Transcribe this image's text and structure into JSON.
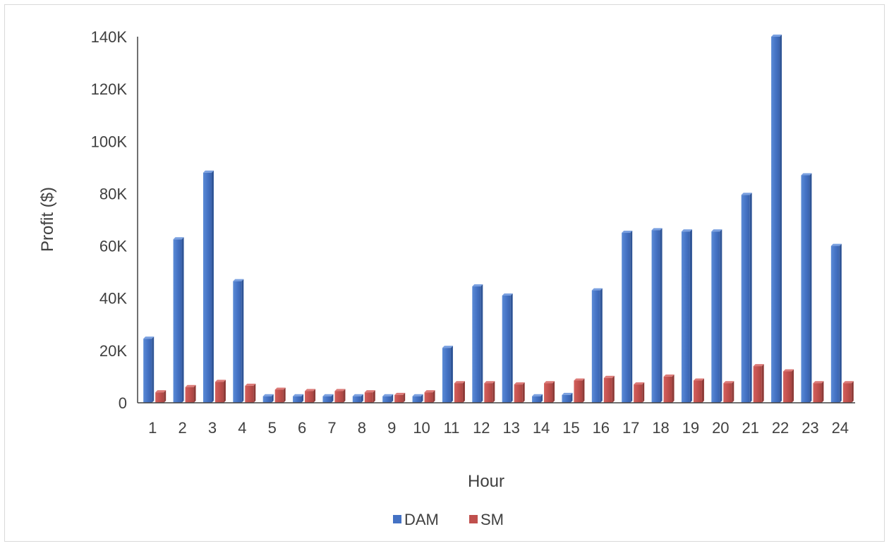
{
  "chart_data": {
    "type": "bar",
    "title": "",
    "xlabel": "Hour",
    "ylabel": "Profit ($)",
    "categories": [
      "1",
      "2",
      "3",
      "4",
      "5",
      "6",
      "7",
      "8",
      "9",
      "10",
      "11",
      "12",
      "13",
      "14",
      "15",
      "16",
      "17",
      "18",
      "19",
      "20",
      "21",
      "22",
      "23",
      "24"
    ],
    "series": [
      {
        "name": "DAM",
        "color": "#4472c4",
        "values": [
          24500,
          62500,
          88000,
          46500,
          2500,
          2500,
          2500,
          2500,
          2500,
          2500,
          21000,
          44500,
          41000,
          2500,
          3000,
          43000,
          65000,
          66000,
          65500,
          65500,
          79500,
          140000,
          87000,
          60000
        ]
      },
      {
        "name": "SM",
        "color": "#c0504d",
        "values": [
          4000,
          6000,
          8000,
          6500,
          5000,
          4500,
          4500,
          4000,
          3000,
          4000,
          7500,
          7500,
          7000,
          7500,
          8500,
          9500,
          7000,
          10000,
          8500,
          7500,
          14000,
          12000,
          7500,
          7500
        ]
      }
    ],
    "yticks": [
      "0",
      "20K",
      "40K",
      "60K",
      "80K",
      "100K",
      "120K",
      "140K"
    ],
    "ylim": [
      0,
      140000
    ],
    "grid": false,
    "legend": "bottom"
  }
}
